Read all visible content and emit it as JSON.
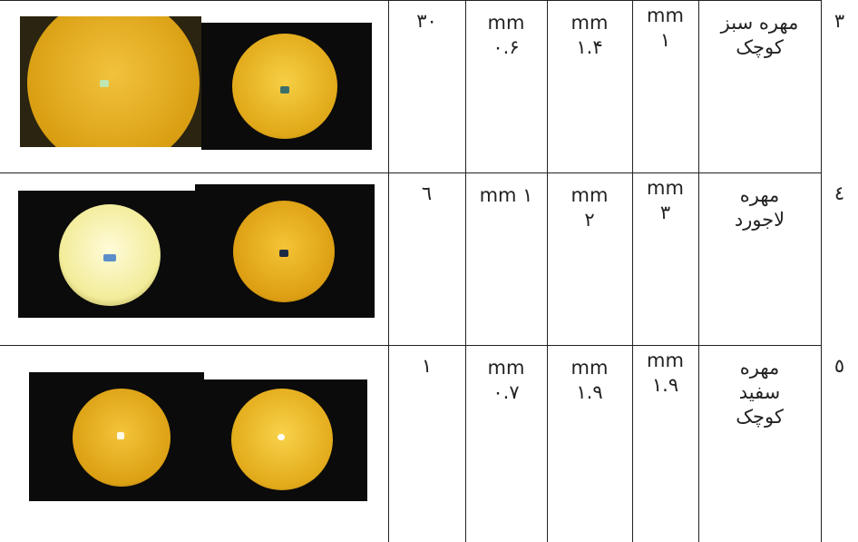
{
  "table": {
    "rows": [
      {
        "count": [
          "۳۰"
        ],
        "size_a": [
          "mm",
          "۰.۶"
        ],
        "size_b": [
          "mm",
          "۱.۴"
        ],
        "size_c": [
          "mm",
          "۱"
        ],
        "name": [
          "مهره سبز",
          "کوچک"
        ],
        "number": [
          "۳"
        ]
      },
      {
        "count": [
          "٦"
        ],
        "size_a": [
          "mm ۱"
        ],
        "size_b": [
          "mm",
          "۲"
        ],
        "size_c": [
          "mm",
          "۳"
        ],
        "name": [
          "مهره",
          "لاجورد"
        ],
        "number": [
          "٤"
        ]
      },
      {
        "count": [
          "۱"
        ],
        "size_a": [
          "mm",
          "۰.۷"
        ],
        "size_b": [
          "mm",
          "۱.۹"
        ],
        "size_c": [
          "mm",
          "۱.۹"
        ],
        "name": [
          "مهره",
          "سفید",
          "کوچک"
        ],
        "number": [
          "٥"
        ]
      }
    ]
  }
}
